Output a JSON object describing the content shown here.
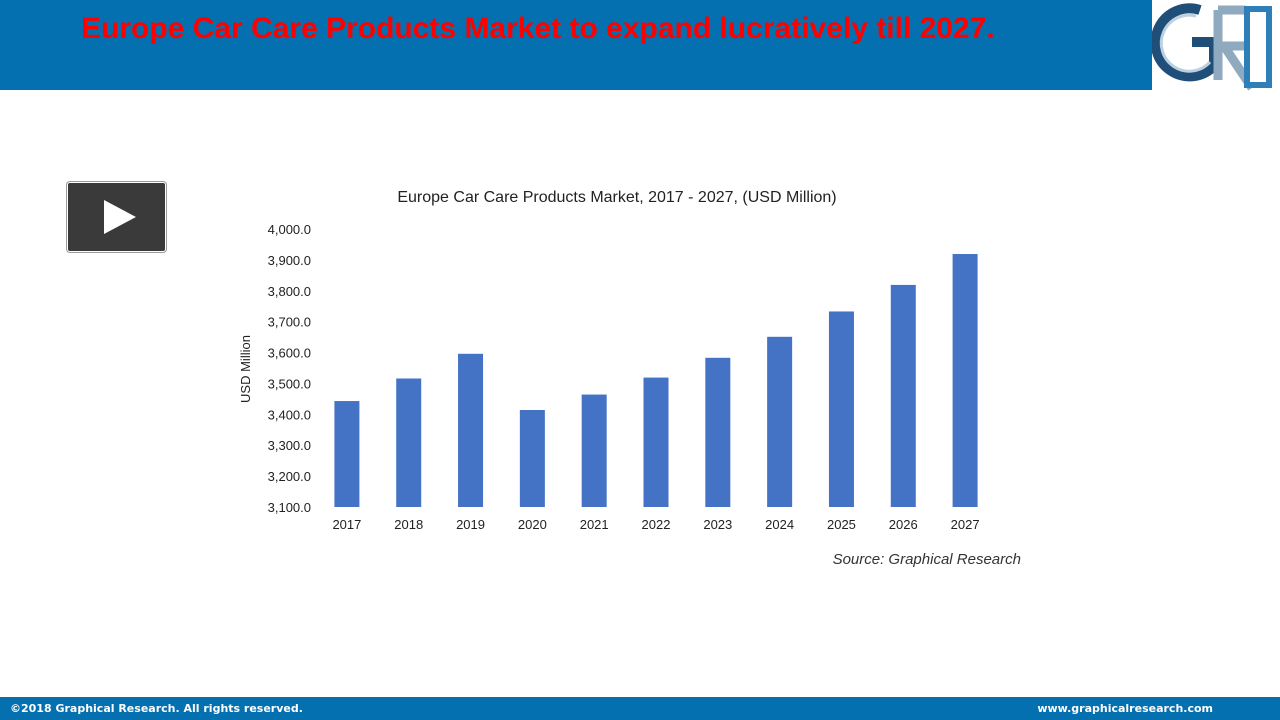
{
  "header": {
    "title": "Europe Car Care Products Market to expand lucratively till 2027.",
    "logo_text": "GR"
  },
  "colors": {
    "header_bg": "#0570b0",
    "title_text": "#ff0000",
    "bar": "#4472c4",
    "footer_bg": "#0570b0"
  },
  "play_button": {
    "icon": "play-icon"
  },
  "chart_data": {
    "type": "bar",
    "title": "Europe Car Care Products Market, 2017 - 2027, (USD Million)",
    "xlabel": "",
    "ylabel": "USD Million",
    "categories": [
      "2017",
      "2018",
      "2019",
      "2020",
      "2021",
      "2022",
      "2023",
      "2024",
      "2025",
      "2026",
      "2027"
    ],
    "values": [
      3443,
      3516,
      3596,
      3414,
      3464,
      3519,
      3583,
      3651,
      3733,
      3819,
      3919
    ],
    "ylim": [
      3100,
      4000
    ],
    "yticks": [
      "3,100.0",
      "3,200.0",
      "3,300.0",
      "3,400.0",
      "3,500.0",
      "3,600.0",
      "3,700.0",
      "3,800.0",
      "3,900.0",
      "4,000.0"
    ],
    "source": "Source: Graphical Research",
    "grid": false,
    "legend": "none"
  },
  "footer": {
    "copyright": "©2018 Graphical Research. All rights reserved.",
    "website": "www.graphicalresearch.com"
  }
}
